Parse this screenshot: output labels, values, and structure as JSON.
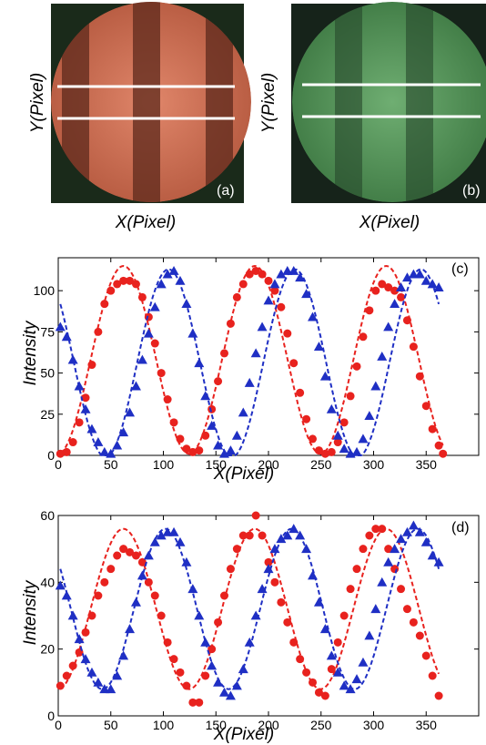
{
  "images": [
    {
      "tag": "(a)",
      "ylabel": "Y(Pixel)",
      "xlabel": "X(Pixel)",
      "tint": "#d9775c"
    },
    {
      "tag": "(b)",
      "ylabel": "Y(Pixel)",
      "xlabel": "X(Pixel)",
      "tint": "#5f9a62"
    }
  ],
  "colors": {
    "red_series": "#e8221e",
    "blue_series": "#1f2fc4"
  },
  "chart_data": [
    {
      "type": "scatter",
      "panel": "(c)",
      "xlabel": "X(Pixel)",
      "ylabel": "Intensity",
      "xlim": [
        0,
        400
      ],
      "ylim": [
        0,
        120
      ],
      "xticks": [
        0,
        50,
        100,
        150,
        200,
        250,
        300,
        350
      ],
      "yticks": [
        0,
        25,
        50,
        75,
        100
      ],
      "grid": false,
      "series": [
        {
          "color": "#e8221e",
          "marker": "circle",
          "points": [
            [
              2,
              1
            ],
            [
              8,
              2
            ],
            [
              14,
              8
            ],
            [
              20,
              20
            ],
            [
              26,
              35
            ],
            [
              32,
              55
            ],
            [
              38,
              75
            ],
            [
              44,
              92
            ],
            [
              50,
              100
            ],
            [
              56,
              104
            ],
            [
              62,
              106
            ],
            [
              68,
              106
            ],
            [
              74,
              104
            ],
            [
              80,
              96
            ],
            [
              86,
              84
            ],
            [
              92,
              68
            ],
            [
              98,
              50
            ],
            [
              104,
              34
            ],
            [
              110,
              20
            ],
            [
              116,
              10
            ],
            [
              122,
              4
            ],
            [
              128,
              2
            ],
            [
              134,
              3
            ],
            [
              140,
              12
            ],
            [
              146,
              28
            ],
            [
              152,
              45
            ],
            [
              158,
              62
            ],
            [
              164,
              80
            ],
            [
              170,
              96
            ],
            [
              176,
              104
            ],
            [
              182,
              110
            ],
            [
              188,
              112
            ],
            [
              194,
              110
            ],
            [
              200,
              106
            ],
            [
              206,
              100
            ],
            [
              212,
              90
            ],
            [
              218,
              74
            ],
            [
              224,
              56
            ],
            [
              230,
              38
            ],
            [
              236,
              22
            ],
            [
              242,
              10
            ],
            [
              248,
              3
            ],
            [
              254,
              1
            ],
            [
              260,
              2
            ],
            [
              266,
              8
            ],
            [
              272,
              20
            ],
            [
              278,
              36
            ],
            [
              284,
              54
            ],
            [
              290,
              72
            ],
            [
              296,
              88
            ],
            [
              302,
              100
            ],
            [
              308,
              104
            ],
            [
              314,
              102
            ],
            [
              320,
              100
            ],
            [
              326,
              96
            ],
            [
              332,
              82
            ],
            [
              338,
              66
            ],
            [
              344,
              48
            ],
            [
              350,
              30
            ],
            [
              356,
              16
            ],
            [
              362,
              6
            ],
            [
              366,
              1
            ]
          ],
          "fit": {
            "amplitude": 57,
            "offset": 58,
            "period": 125,
            "peak_x": 62
          }
        },
        {
          "color": "#1f2fc4",
          "marker": "triangle",
          "points": [
            [
              2,
              78
            ],
            [
              8,
              72
            ],
            [
              14,
              58
            ],
            [
              20,
              42
            ],
            [
              26,
              28
            ],
            [
              32,
              16
            ],
            [
              38,
              8
            ],
            [
              44,
              2
            ],
            [
              50,
              1
            ],
            [
              56,
              6
            ],
            [
              62,
              14
            ],
            [
              68,
              26
            ],
            [
              74,
              42
            ],
            [
              80,
              58
            ],
            [
              86,
              74
            ],
            [
              92,
              90
            ],
            [
              98,
              104
            ],
            [
              104,
              110
            ],
            [
              110,
              112
            ],
            [
              116,
              106
            ],
            [
              122,
              92
            ],
            [
              128,
              74
            ],
            [
              134,
              56
            ],
            [
              140,
              36
            ],
            [
              146,
              18
            ],
            [
              152,
              6
            ],
            [
              158,
              1
            ],
            [
              164,
              3
            ],
            [
              170,
              12
            ],
            [
              176,
              26
            ],
            [
              182,
              44
            ],
            [
              188,
              62
            ],
            [
              194,
              78
            ],
            [
              200,
              94
            ],
            [
              206,
              104
            ],
            [
              212,
              110
            ],
            [
              218,
              112
            ],
            [
              224,
              112
            ],
            [
              230,
              108
            ],
            [
              236,
              98
            ],
            [
              242,
              84
            ],
            [
              248,
              66
            ],
            [
              254,
              48
            ],
            [
              260,
              28
            ],
            [
              266,
              12
            ],
            [
              272,
              4
            ],
            [
              278,
              1
            ],
            [
              284,
              2
            ],
            [
              290,
              10
            ],
            [
              296,
              24
            ],
            [
              302,
              42
            ],
            [
              308,
              60
            ],
            [
              314,
              78
            ],
            [
              320,
              92
            ],
            [
              326,
              102
            ],
            [
              332,
              108
            ],
            [
              338,
              110
            ],
            [
              344,
              110
            ],
            [
              350,
              106
            ],
            [
              356,
              104
            ],
            [
              362,
              102
            ]
          ],
          "fit": {
            "amplitude": 57,
            "offset": 56,
            "period": 120,
            "peak_x": 105
          }
        }
      ]
    },
    {
      "type": "scatter",
      "panel": "(d)",
      "xlabel": "X(Pixel)",
      "ylabel": "Intensity",
      "xlim": [
        0,
        400
      ],
      "ylim": [
        0,
        60
      ],
      "xticks": [
        0,
        50,
        100,
        150,
        200,
        250,
        300,
        350
      ],
      "yticks": [
        0,
        20,
        40,
        60
      ],
      "grid": false,
      "series": [
        {
          "color": "#e8221e",
          "marker": "circle",
          "points": [
            [
              2,
              9
            ],
            [
              8,
              12
            ],
            [
              14,
              15
            ],
            [
              20,
              19
            ],
            [
              26,
              25
            ],
            [
              32,
              30
            ],
            [
              38,
              36
            ],
            [
              44,
              40
            ],
            [
              50,
              44
            ],
            [
              56,
              48
            ],
            [
              62,
              50
            ],
            [
              68,
              49
            ],
            [
              74,
              48
            ],
            [
              80,
              46
            ],
            [
              86,
              40
            ],
            [
              92,
              36
            ],
            [
              98,
              30
            ],
            [
              104,
              22
            ],
            [
              110,
              17
            ],
            [
              116,
              13
            ],
            [
              122,
              9
            ],
            [
              128,
              4
            ],
            [
              134,
              4
            ],
            [
              140,
              12
            ],
            [
              146,
              20
            ],
            [
              152,
              28
            ],
            [
              158,
              36
            ],
            [
              164,
              44
            ],
            [
              170,
              50
            ],
            [
              176,
              54
            ],
            [
              182,
              54
            ],
            [
              188,
              60
            ],
            [
              194,
              54
            ],
            [
              200,
              46
            ],
            [
              206,
              40
            ],
            [
              212,
              34
            ],
            [
              218,
              28
            ],
            [
              224,
              22
            ],
            [
              230,
              17
            ],
            [
              236,
              13
            ],
            [
              242,
              10
            ],
            [
              248,
              7
            ],
            [
              254,
              6
            ],
            [
              260,
              14
            ],
            [
              266,
              22
            ],
            [
              272,
              30
            ],
            [
              278,
              38
            ],
            [
              284,
              44
            ],
            [
              290,
              50
            ],
            [
              296,
              54
            ],
            [
              302,
              56
            ],
            [
              308,
              56
            ],
            [
              314,
              50
            ],
            [
              320,
              44
            ],
            [
              326,
              38
            ],
            [
              332,
              32
            ],
            [
              338,
              28
            ],
            [
              344,
              24
            ],
            [
              350,
              18
            ],
            [
              356,
              12
            ],
            [
              362,
              6
            ]
          ],
          "fit": {
            "amplitude": 24,
            "offset": 32,
            "period": 125,
            "peak_x": 62
          }
        },
        {
          "color": "#1f2fc4",
          "marker": "triangle",
          "points": [
            [
              2,
              39
            ],
            [
              8,
              36
            ],
            [
              14,
              30
            ],
            [
              20,
              23
            ],
            [
              26,
              17
            ],
            [
              32,
              13
            ],
            [
              38,
              10
            ],
            [
              44,
              8
            ],
            [
              50,
              8
            ],
            [
              56,
              12
            ],
            [
              62,
              18
            ],
            [
              68,
              26
            ],
            [
              74,
              34
            ],
            [
              80,
              42
            ],
            [
              86,
              48
            ],
            [
              92,
              52
            ],
            [
              98,
              54
            ],
            [
              104,
              55
            ],
            [
              110,
              55
            ],
            [
              116,
              52
            ],
            [
              122,
              46
            ],
            [
              128,
              38
            ],
            [
              134,
              30
            ],
            [
              140,
              22
            ],
            [
              146,
              15
            ],
            [
              152,
              10
            ],
            [
              158,
              7
            ],
            [
              164,
              6
            ],
            [
              170,
              9
            ],
            [
              176,
              14
            ],
            [
              182,
              22
            ],
            [
              188,
              30
            ],
            [
              194,
              38
            ],
            [
              200,
              44
            ],
            [
              206,
              50
            ],
            [
              212,
              53
            ],
            [
              218,
              54
            ],
            [
              224,
              56
            ],
            [
              230,
              54
            ],
            [
              236,
              50
            ],
            [
              242,
              42
            ],
            [
              248,
              34
            ],
            [
              254,
              26
            ],
            [
              260,
              18
            ],
            [
              266,
              13
            ],
            [
              272,
              9
            ],
            [
              278,
              8
            ],
            [
              284,
              11
            ],
            [
              290,
              16
            ],
            [
              296,
              24
            ],
            [
              302,
              32
            ],
            [
              308,
              40
            ],
            [
              314,
              46
            ],
            [
              320,
              50
            ],
            [
              326,
              53
            ],
            [
              332,
              55
            ],
            [
              338,
              57
            ],
            [
              344,
              55
            ],
            [
              350,
              52
            ],
            [
              356,
              48
            ],
            [
              362,
              46
            ]
          ],
          "fit": {
            "amplitude": 24,
            "offset": 32,
            "period": 120,
            "peak_x": 102
          }
        }
      ]
    }
  ]
}
